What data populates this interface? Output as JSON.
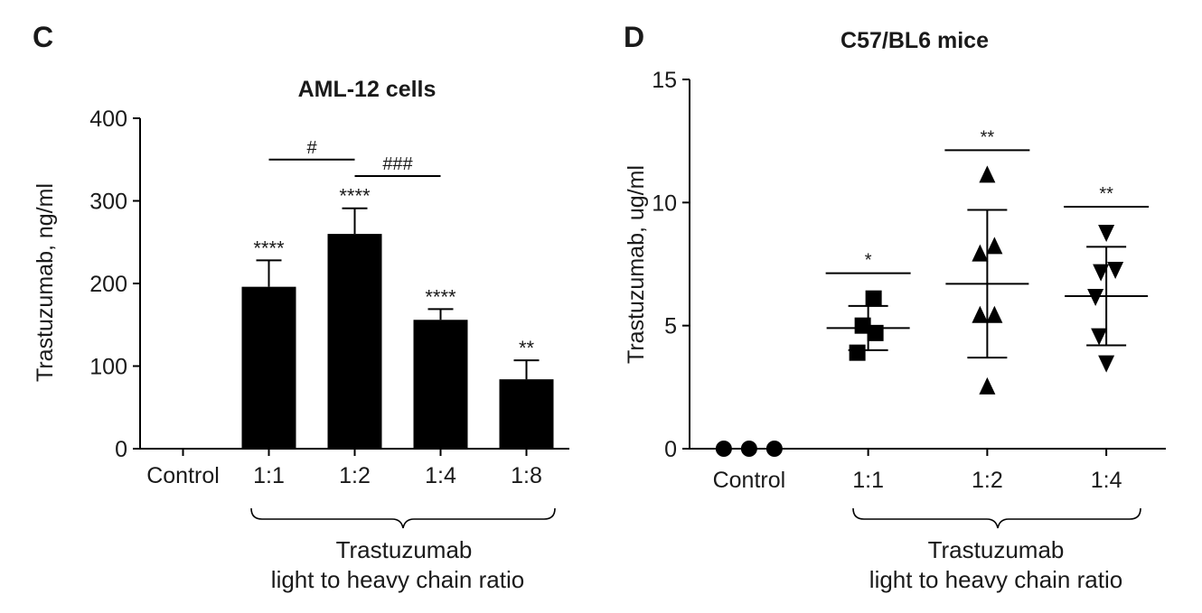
{
  "chart_data": [
    {
      "panel": "C",
      "type": "bar",
      "title": "AML-12 cells",
      "ylabel": "Trastuzumab, ng/ml",
      "xlabel_lines": [
        "Trastuzumab",
        "light to heavy chain ratio"
      ],
      "ylim": [
        0,
        400
      ],
      "yticks": [
        0,
        100,
        200,
        300,
        400
      ],
      "categories": [
        "Control",
        "1:1",
        "1:2",
        "1:4",
        "1:8"
      ],
      "values": [
        0,
        196,
        260,
        156,
        84
      ],
      "errors": [
        0,
        32,
        31,
        13,
        23
      ],
      "significance": [
        "",
        "****",
        "****",
        "****",
        "**"
      ],
      "brackets": [
        {
          "from": 1,
          "to": 2,
          "label": "#",
          "y": 350
        },
        {
          "from": 2,
          "to": 3,
          "label": "###",
          "y": 330
        }
      ],
      "grid": false,
      "color": "#000000"
    },
    {
      "panel": "D",
      "type": "scatter",
      "title": "C57/BL6 mice",
      "ylabel": "Trastuzumab, ug/ml",
      "xlabel_lines": [
        "Trastuzumab",
        "light to heavy chain ratio"
      ],
      "ylim": [
        0,
        15
      ],
      "yticks": [
        0,
        5,
        10,
        15
      ],
      "categories": [
        "Control",
        "1:1",
        "1:2",
        "1:4"
      ],
      "groups": [
        {
          "category": "Control",
          "marker": "circle",
          "points": [
            0,
            0,
            0
          ],
          "mean": null,
          "sd": null,
          "significance": ""
        },
        {
          "category": "1:1",
          "marker": "square",
          "points": [
            6.1,
            5.0,
            4.7,
            3.9
          ],
          "mean": 4.9,
          "sd": 0.9,
          "significance": "*"
        },
        {
          "category": "1:2",
          "marker": "triangle-up",
          "points": [
            11.1,
            8.2,
            7.9,
            5.4,
            5.4,
            2.5
          ],
          "mean": 6.7,
          "sd": 3.0,
          "significance": "**"
        },
        {
          "category": "1:4",
          "marker": "triangle-down",
          "points": [
            8.8,
            7.3,
            7.2,
            6.2,
            4.6,
            3.5
          ],
          "mean": 6.2,
          "sd": 2.0,
          "significance": "**"
        }
      ],
      "grid": false,
      "color": "#000000"
    }
  ]
}
